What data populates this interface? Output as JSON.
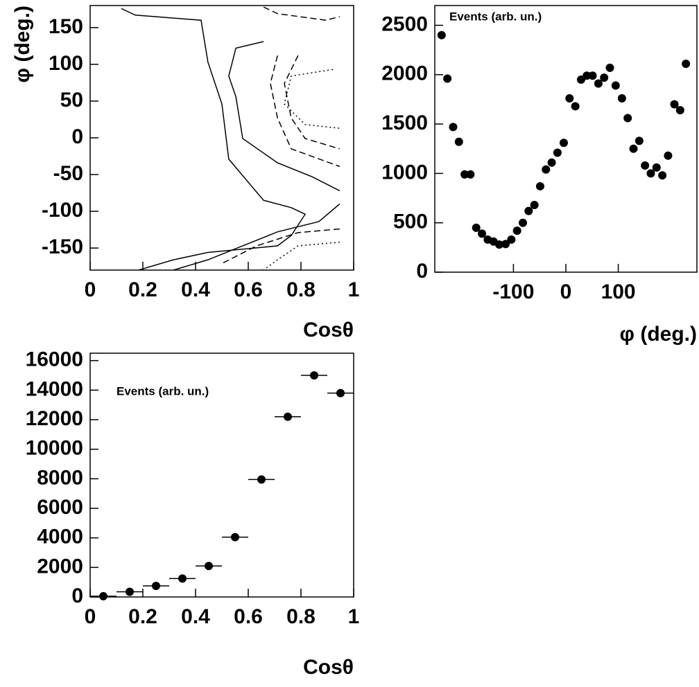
{
  "chart_data": [
    {
      "type": "contour",
      "x_label": "Cosθ",
      "y_label": "φ (deg.)",
      "xlim": [
        0,
        1
      ],
      "ylim": [
        -180,
        180
      ],
      "xticks": [
        0,
        0.2,
        0.4,
        0.6,
        0.8,
        1
      ],
      "yticks": [
        -150,
        -100,
        -50,
        0,
        50,
        100,
        150
      ],
      "color": "#000000",
      "lines": [
        {
          "style": "solid",
          "x": [
            0.118,
            0.171,
            0.421,
            0.447,
            0.5,
            0.526,
            0.658,
            0.763,
            0.816,
            0.763,
            0.711,
            0.447,
            0.316,
            0.184
          ],
          "y": [
            176,
            167,
            160,
            103,
            46,
            -29,
            -85,
            -95,
            -104,
            -133,
            -147,
            -156,
            -166,
            -180
          ]
        },
        {
          "style": "solid",
          "x": [
            0.658,
            0.553,
            0.526,
            0.553,
            0.579,
            0.711,
            0.842,
            0.947
          ],
          "y": [
            131,
            122,
            84,
            56,
            -1,
            -34,
            -53,
            -72
          ]
        },
        {
          "style": "solid",
          "x": [
            0.947,
            0.868,
            0.711,
            0.579,
            0.447,
            0.316
          ],
          "y": [
            -90,
            -114,
            -128,
            -147,
            -166,
            -180
          ]
        },
        {
          "style": "dashed",
          "x": [
            0.711,
            0.684,
            0.711,
            0.763,
            0.947
          ],
          "y": [
            112,
            74,
            27,
            -15,
            -39
          ]
        },
        {
          "style": "dashed",
          "x": [
            0.789,
            0.737,
            0.763,
            0.816,
            0.947
          ],
          "y": [
            112,
            74,
            27,
            -1,
            -15
          ]
        },
        {
          "style": "dashed",
          "x": [
            0.658,
            0.711,
            0.895,
            0.947
          ],
          "y": [
            178,
            169,
            160,
            165
          ]
        },
        {
          "style": "dashed",
          "x": [
            0.947,
            0.789,
            0.632,
            0.5
          ],
          "y": [
            -124,
            -129,
            -147,
            -171
          ]
        },
        {
          "style": "dotted",
          "x": [
            0.921,
            0.763,
            0.737,
            0.816,
            0.947
          ],
          "y": [
            93,
            84,
            46,
            18,
            13
          ]
        },
        {
          "style": "dotted",
          "x": [
            0.947,
            0.789,
            0.711,
            0.658
          ],
          "y": [
            -142,
            -147,
            -166,
            -180
          ]
        }
      ]
    },
    {
      "type": "scatter",
      "x_label": "φ (deg.)",
      "label": "Events (arb. un.)",
      "xlim": [
        -250,
        250
      ],
      "ylim": [
        0,
        2700
      ],
      "xticks": [
        -100,
        0,
        100
      ],
      "yticks": [
        0,
        500,
        1000,
        1500,
        2000,
        2500
      ],
      "color": "#000000",
      "x": [
        -237,
        -226,
        -215,
        -204,
        -193,
        -182,
        -171,
        -160,
        -149,
        -138,
        -127,
        -115,
        -104,
        -93,
        -82,
        -71,
        -60,
        -49,
        -38,
        -27,
        -16,
        -4,
        7,
        18,
        29,
        40,
        51,
        62,
        73,
        84,
        95,
        107,
        118,
        129,
        140,
        151,
        162,
        173,
        184,
        195,
        207,
        218,
        229
      ],
      "values": [
        2400,
        1960,
        1470,
        1320,
        990,
        990,
        450,
        390,
        330,
        310,
        280,
        285,
        330,
        420,
        500,
        620,
        680,
        870,
        1040,
        1110,
        1210,
        1310,
        1760,
        1680,
        1950,
        1990,
        1990,
        1910,
        1970,
        2070,
        1890,
        1760,
        1560,
        1250,
        1330,
        1080,
        1000,
        1060,
        980,
        1180,
        1700,
        1640,
        2110
      ]
    },
    {
      "type": "histogram",
      "x_label": "Cosθ",
      "label": "Events (arb. un.)",
      "xlim": [
        0,
        1
      ],
      "ylim": [
        0,
        16500
      ],
      "xticks": [
        0,
        0.2,
        0.4,
        0.6,
        0.8,
        1
      ],
      "yticks": [
        0,
        2000,
        4000,
        6000,
        8000,
        10000,
        12000,
        14000,
        16000
      ],
      "color": "#000000",
      "bins": [
        0,
        0.1,
        0.2,
        0.3,
        0.4,
        0.5,
        0.6,
        0.7,
        0.8,
        0.9,
        1
      ],
      "values": [
        50,
        350,
        750,
        1250,
        2100,
        4050,
        7950,
        12200,
        15000,
        13800
      ]
    }
  ]
}
